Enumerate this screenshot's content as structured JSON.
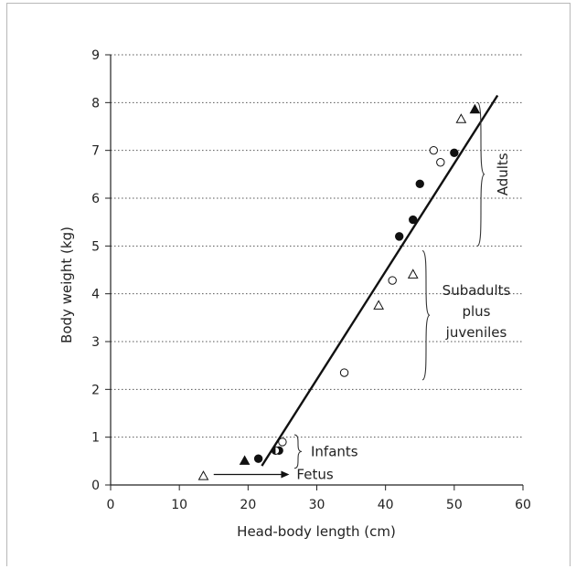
{
  "chart_data": {
    "type": "scatter",
    "xlabel": "Head-body length (cm)",
    "ylabel": "Body weight (kg)",
    "xlim": [
      0,
      60
    ],
    "ylim": [
      0,
      9
    ],
    "xticks": [
      "0",
      "10",
      "20",
      "30",
      "40",
      "50",
      "60"
    ],
    "yticks": [
      "0",
      "1",
      "2",
      "3",
      "4",
      "5",
      "6",
      "7",
      "8",
      "9"
    ],
    "grid": "horizontal dotted",
    "series": [
      {
        "marker": "open-triangle",
        "points": [
          [
            13.5,
            0.18
          ],
          [
            39,
            3.75
          ],
          [
            44,
            4.4
          ],
          [
            51,
            7.65
          ]
        ]
      },
      {
        "marker": "filled-triangle",
        "points": [
          [
            19.5,
            0.5
          ],
          [
            53,
            7.85
          ]
        ]
      },
      {
        "marker": "open-circle",
        "points": [
          [
            25,
            0.9
          ],
          [
            34,
            2.35
          ],
          [
            41,
            4.28
          ],
          [
            47,
            7.0
          ],
          [
            48,
            6.75
          ]
        ]
      },
      {
        "marker": "filled-circle",
        "points": [
          [
            21.5,
            0.55
          ],
          [
            24.5,
            0.72
          ],
          [
            42,
            5.2
          ],
          [
            44,
            5.55
          ],
          [
            45,
            6.3
          ],
          [
            50,
            6.95
          ]
        ]
      },
      {
        "marker": "half-filled-circle",
        "points": [
          [
            24,
            0.72
          ]
        ]
      }
    ],
    "regression_line": {
      "x": [
        22,
        56.3
      ],
      "y": [
        0.4,
        8.15
      ]
    },
    "annotations": [
      {
        "text": "Adults",
        "y_range": [
          5.0,
          8.0
        ]
      },
      {
        "text_lines": [
          "Subadults",
          "plus",
          "juveniles"
        ],
        "y_range": [
          2.2,
          4.9
        ]
      },
      {
        "text": "Infants",
        "y_range": [
          0.35,
          1.05
        ]
      },
      {
        "text": "Fetus",
        "x_range": [
          15,
          26
        ]
      }
    ]
  }
}
